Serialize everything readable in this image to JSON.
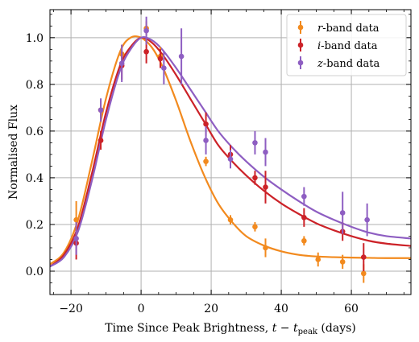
{
  "chart_data": {
    "type": "scatter",
    "xlabel": "Time Since Peak Brightness, t − t_peak (days)",
    "xlabel_parts": {
      "prefix": "Time Since Peak Brightness, ",
      "t": "t",
      "minus": " − ",
      "t2": "t",
      "sub": "peak",
      "suffix": " (days)"
    },
    "ylabel": "Normalised Flux",
    "xlim": [
      -26,
      77
    ],
    "ylim": [
      -0.1,
      1.12
    ],
    "xticks": [
      -20,
      0,
      20,
      40,
      60
    ],
    "xtick_labels": [
      "−20",
      "0",
      "20",
      "40",
      "60"
    ],
    "yticks": [
      0.0,
      0.2,
      0.4,
      0.6,
      0.8,
      1.0
    ],
    "ytick_labels": [
      "0.0",
      "0.2",
      "0.4",
      "0.6",
      "0.8",
      "1.0"
    ],
    "grid": true,
    "legend_position": "top-right",
    "series": [
      {
        "name": "r-band data",
        "legend": {
          "italic": "r",
          "rest": "-band data"
        },
        "color": "#f28a1e",
        "points": [
          {
            "x": -18.5,
            "y": 0.22,
            "err": 0.08
          },
          {
            "x": -11.5,
            "y": 0.69,
            "err": 0.04
          },
          {
            "x": -5.5,
            "y": 0.93,
            "err": 0.04
          },
          {
            "x": 1.5,
            "y": 1.04,
            "err": 0.03
          },
          {
            "x": 5.5,
            "y": 0.92,
            "err": 0.04
          },
          {
            "x": 18.5,
            "y": 0.47,
            "err": 0.02
          },
          {
            "x": 25.5,
            "y": 0.22,
            "err": 0.02
          },
          {
            "x": 32.5,
            "y": 0.19,
            "err": 0.02
          },
          {
            "x": 35.5,
            "y": 0.1,
            "err": 0.04
          },
          {
            "x": 46.5,
            "y": 0.13,
            "err": 0.02
          },
          {
            "x": 50.5,
            "y": 0.05,
            "err": 0.03
          },
          {
            "x": 57.5,
            "y": 0.04,
            "err": 0.03
          },
          {
            "x": 63.5,
            "y": -0.01,
            "err": 0.04
          }
        ],
        "model": {
          "x": [
            -26,
            -22,
            -18,
            -14,
            -10,
            -6,
            -3,
            0,
            3,
            6,
            10,
            14,
            18,
            22,
            26,
            30,
            35,
            40,
            45,
            50,
            55,
            60,
            65,
            70,
            77
          ],
          "y": [
            0.03,
            0.08,
            0.22,
            0.47,
            0.74,
            0.94,
            1.0,
            1.0,
            0.96,
            0.88,
            0.73,
            0.56,
            0.41,
            0.29,
            0.21,
            0.15,
            0.11,
            0.085,
            0.07,
            0.063,
            0.06,
            0.058,
            0.057,
            0.056,
            0.056
          ]
        }
      },
      {
        "name": "i-band data",
        "legend": {
          "italic": "i",
          "rest": "-band data"
        },
        "color": "#cc2228",
        "points": [
          {
            "x": -18.5,
            "y": 0.12,
            "err": 0.07
          },
          {
            "x": -11.5,
            "y": 0.56,
            "err": 0.04
          },
          {
            "x": -5.5,
            "y": 0.88,
            "err": 0.06
          },
          {
            "x": 1.5,
            "y": 0.94,
            "err": 0.05
          },
          {
            "x": 5.5,
            "y": 0.91,
            "err": 0.04
          },
          {
            "x": 18.5,
            "y": 0.63,
            "err": 0.05
          },
          {
            "x": 25.5,
            "y": 0.5,
            "err": 0.04
          },
          {
            "x": 32.5,
            "y": 0.4,
            "err": 0.03
          },
          {
            "x": 35.5,
            "y": 0.36,
            "err": 0.07
          },
          {
            "x": 46.5,
            "y": 0.23,
            "err": 0.04
          },
          {
            "x": 57.5,
            "y": 0.17,
            "err": 0.04
          },
          {
            "x": 63.5,
            "y": 0.06,
            "err": 0.06
          }
        ],
        "model": {
          "x": [
            -26,
            -22,
            -18,
            -14,
            -10,
            -6,
            -3,
            0,
            3,
            6,
            10,
            14,
            18,
            22,
            26,
            30,
            35,
            40,
            45,
            50,
            55,
            60,
            65,
            70,
            77
          ],
          "y": [
            0.02,
            0.07,
            0.19,
            0.42,
            0.68,
            0.88,
            0.96,
            1.0,
            0.98,
            0.93,
            0.84,
            0.74,
            0.64,
            0.54,
            0.47,
            0.41,
            0.345,
            0.29,
            0.245,
            0.205,
            0.175,
            0.15,
            0.13,
            0.118,
            0.108
          ]
        }
      },
      {
        "name": "z-band data",
        "legend": {
          "italic": "z",
          "rest": "-band data"
        },
        "color": "#8e5ec2",
        "points": [
          {
            "x": -18.5,
            "y": 0.14,
            "err": 0.07
          },
          {
            "x": -11.5,
            "y": 0.69,
            "err": 0.05
          },
          {
            "x": -5.5,
            "y": 0.89,
            "err": 0.08
          },
          {
            "x": 1.5,
            "y": 1.03,
            "err": 0.06
          },
          {
            "x": 6.5,
            "y": 0.87,
            "err": 0.07
          },
          {
            "x": 11.5,
            "y": 0.92,
            "err": 0.12
          },
          {
            "x": 18.5,
            "y": 0.56,
            "err": 0.06
          },
          {
            "x": 25.5,
            "y": 0.48,
            "err": 0.04
          },
          {
            "x": 32.5,
            "y": 0.55,
            "err": 0.05
          },
          {
            "x": 35.5,
            "y": 0.51,
            "err": 0.06
          },
          {
            "x": 46.5,
            "y": 0.32,
            "err": 0.04
          },
          {
            "x": 57.5,
            "y": 0.25,
            "err": 0.09
          },
          {
            "x": 64.5,
            "y": 0.22,
            "err": 0.07
          }
        ],
        "model": {
          "x": [
            -26,
            -22,
            -18,
            -14,
            -10,
            -6,
            -3,
            0,
            3,
            6,
            10,
            14,
            18,
            22,
            26,
            30,
            35,
            40,
            45,
            50,
            55,
            60,
            65,
            70,
            77
          ],
          "y": [
            0.02,
            0.06,
            0.17,
            0.39,
            0.65,
            0.86,
            0.95,
            1.0,
            0.99,
            0.95,
            0.87,
            0.78,
            0.69,
            0.6,
            0.53,
            0.47,
            0.405,
            0.35,
            0.3,
            0.255,
            0.22,
            0.19,
            0.165,
            0.15,
            0.14
          ]
        }
      }
    ]
  }
}
